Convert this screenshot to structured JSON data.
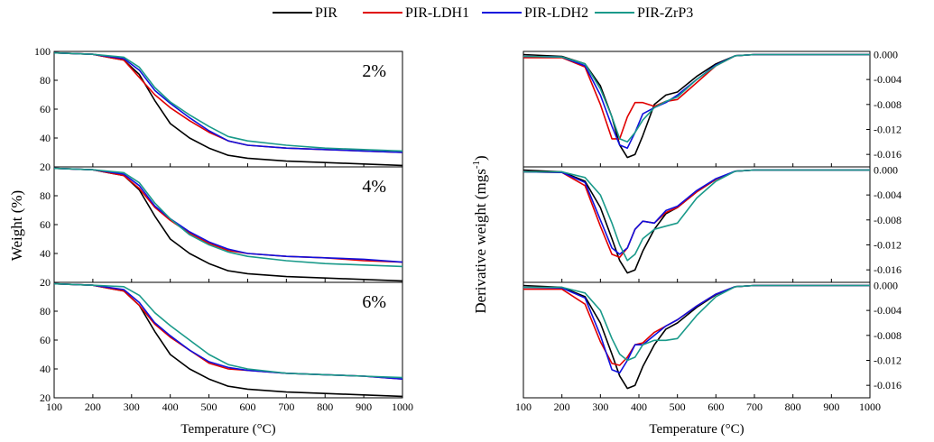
{
  "legend": {
    "items": [
      {
        "name": "PIR",
        "color": "#000000"
      },
      {
        "name": "PIR-LDH1",
        "color": "#e00000"
      },
      {
        "name": "PIR-LDH2",
        "color": "#1010dd"
      },
      {
        "name": "PIR-ZrP3",
        "color": "#1a9a8a"
      }
    ]
  },
  "left_ylabel": "Weight (%)",
  "right_ylabel_main": "Derivative weight (mgs",
  "right_ylabel_sup": "-1",
  "right_ylabel_end": ")",
  "chart_data": [
    {
      "type": "line",
      "panel": "left",
      "xlabel": "Temperature (°C)",
      "ylabel": "Weight (%)",
      "xlim": [
        100,
        1000
      ],
      "xticks": [
        100,
        200,
        300,
        400,
        500,
        600,
        700,
        800,
        900,
        1000
      ],
      "ylim": [
        20,
        100
      ],
      "yticks": [
        20,
        40,
        60,
        80,
        100
      ],
      "subplots": [
        {
          "label": "2%",
          "x": [
            100,
            200,
            280,
            320,
            360,
            400,
            450,
            500,
            550,
            600,
            700,
            800,
            900,
            1000
          ],
          "series": [
            {
              "name": "PIR",
              "values": [
                99,
                98,
                94,
                84,
                66,
                50,
                40,
                33,
                28,
                26,
                24,
                23,
                22,
                21
              ]
            },
            {
              "name": "PIR-LDH1",
              "values": [
                99,
                98,
                94,
                82,
                70,
                61,
                52,
                44,
                38,
                35,
                33,
                32,
                31,
                30
              ]
            },
            {
              "name": "PIR-LDH2",
              "values": [
                99,
                98,
                95,
                87,
                73,
                64,
                54,
                45,
                38,
                35,
                33,
                32,
                31,
                30
              ]
            },
            {
              "name": "PIR-ZrP3",
              "values": [
                99,
                98,
                96,
                89,
                75,
                65,
                56,
                48,
                41,
                38,
                35,
                33,
                32,
                31
              ]
            }
          ]
        },
        {
          "label": "4%",
          "x": [
            100,
            200,
            280,
            320,
            360,
            400,
            450,
            500,
            550,
            600,
            700,
            800,
            900,
            1000
          ],
          "series": [
            {
              "name": "PIR",
              "values": [
                99,
                98,
                94,
                84,
                66,
                50,
                40,
                33,
                28,
                26,
                24,
                23,
                22,
                21
              ]
            },
            {
              "name": "PIR-LDH1",
              "values": [
                99,
                98,
                94,
                85,
                72,
                63,
                54,
                47,
                42,
                40,
                38,
                37,
                35,
                34
              ]
            },
            {
              "name": "PIR-LDH2",
              "values": [
                99,
                98,
                95,
                87,
                73,
                64,
                55,
                48,
                43,
                40,
                38,
                37,
                36,
                34
              ]
            },
            {
              "name": "PIR-ZrP3",
              "values": [
                99,
                98,
                96,
                89,
                75,
                64,
                53,
                46,
                41,
                38,
                35,
                33,
                32,
                31
              ]
            }
          ]
        },
        {
          "label": "6%",
          "x": [
            100,
            200,
            280,
            320,
            360,
            400,
            450,
            500,
            550,
            600,
            700,
            800,
            900,
            1000
          ],
          "series": [
            {
              "name": "PIR",
              "values": [
                99,
                98,
                94,
                84,
                66,
                50,
                40,
                33,
                28,
                26,
                24,
                23,
                22,
                21
              ]
            },
            {
              "name": "PIR-LDH1",
              "values": [
                99,
                98,
                94,
                84,
                71,
                62,
                53,
                44,
                40,
                39,
                37,
                36,
                35,
                33
              ]
            },
            {
              "name": "PIR-LDH2",
              "values": [
                99,
                98,
                95,
                86,
                72,
                63,
                53,
                45,
                41,
                39,
                37,
                36,
                35,
                33
              ]
            },
            {
              "name": "PIR-ZrP3",
              "values": [
                99,
                98,
                97,
                91,
                79,
                70,
                60,
                50,
                43,
                40,
                37,
                36,
                35,
                34
              ]
            }
          ]
        }
      ]
    },
    {
      "type": "line",
      "panel": "right",
      "xlabel": "Temperature (°C)",
      "ylabel": "Derivative weight (mgs-1)",
      "xlim": [
        100,
        1000
      ],
      "xticks": [
        100,
        200,
        300,
        400,
        500,
        600,
        700,
        800,
        900,
        1000
      ],
      "ylim": [
        -0.018,
        0.0005
      ],
      "yticks": [
        "0.000",
        "-0.004",
        "-0.008",
        "-0.012",
        "-0.016"
      ],
      "subplots": [
        {
          "x": [
            100,
            200,
            260,
            300,
            330,
            350,
            370,
            390,
            410,
            440,
            470,
            500,
            550,
            600,
            650,
            700,
            800,
            900,
            1000
          ],
          "series": [
            {
              "name": "PIR",
              "values": [
                0,
                -0.0003,
                -0.0015,
                -0.005,
                -0.01,
                -0.0145,
                -0.0165,
                -0.016,
                -0.013,
                -0.008,
                -0.0065,
                -0.006,
                -0.0035,
                -0.0015,
                -0.0002,
                0,
                0,
                0,
                0
              ]
            },
            {
              "name": "PIR-LDH1",
              "values": [
                -0.0005,
                -0.0005,
                -0.002,
                -0.008,
                -0.0135,
                -0.0135,
                -0.01,
                -0.0077,
                -0.0077,
                -0.0083,
                -0.0075,
                -0.0072,
                -0.0045,
                -0.0018,
                -0.0002,
                0,
                0,
                0,
                0
              ]
            },
            {
              "name": "PIR-LDH2",
              "values": [
                -0.0003,
                -0.0004,
                -0.0018,
                -0.0065,
                -0.0115,
                -0.0145,
                -0.015,
                -0.0125,
                -0.0095,
                -0.0085,
                -0.0077,
                -0.0065,
                -0.004,
                -0.0017,
                -0.0002,
                0,
                0,
                0,
                0
              ]
            },
            {
              "name": "PIR-ZrP3",
              "values": [
                -0.0003,
                -0.0004,
                -0.0015,
                -0.0055,
                -0.01,
                -0.0135,
                -0.014,
                -0.0125,
                -0.0105,
                -0.0085,
                -0.0075,
                -0.0068,
                -0.004,
                -0.0018,
                -0.0002,
                0,
                0,
                0,
                0
              ]
            }
          ]
        },
        {
          "x": [
            100,
            200,
            260,
            300,
            330,
            350,
            370,
            390,
            410,
            440,
            470,
            500,
            550,
            600,
            650,
            700,
            800,
            900,
            1000
          ],
          "series": [
            {
              "name": "PIR",
              "values": [
                0,
                -0.0003,
                -0.0018,
                -0.006,
                -0.011,
                -0.0145,
                -0.0165,
                -0.016,
                -0.013,
                -0.0095,
                -0.007,
                -0.006,
                -0.0035,
                -0.0015,
                -0.0002,
                0,
                0,
                0,
                0
              ]
            },
            {
              "name": "PIR-LDH1",
              "values": [
                -0.0003,
                -0.0004,
                -0.0025,
                -0.009,
                -0.0135,
                -0.014,
                -0.0125,
                -0.0095,
                -0.0082,
                -0.0085,
                -0.0068,
                -0.006,
                -0.0035,
                -0.0015,
                -0.0002,
                0,
                0,
                0,
                0
              ]
            },
            {
              "name": "PIR-LDH2",
              "values": [
                -0.0003,
                -0.0004,
                -0.002,
                -0.008,
                -0.0125,
                -0.0135,
                -0.0125,
                -0.0095,
                -0.0082,
                -0.0085,
                -0.0065,
                -0.0058,
                -0.0033,
                -0.0014,
                -0.0002,
                0,
                0,
                0,
                0
              ]
            },
            {
              "name": "PIR-ZrP3",
              "values": [
                -0.0003,
                -0.0003,
                -0.0012,
                -0.004,
                -0.0085,
                -0.012,
                -0.0145,
                -0.0135,
                -0.011,
                -0.0095,
                -0.009,
                -0.0085,
                -0.0045,
                -0.0018,
                -0.0002,
                0,
                0,
                0,
                0
              ]
            }
          ]
        },
        {
          "x": [
            100,
            200,
            260,
            300,
            330,
            350,
            370,
            390,
            410,
            440,
            470,
            500,
            550,
            600,
            650,
            700,
            800,
            900,
            1000
          ],
          "series": [
            {
              "name": "PIR",
              "values": [
                0,
                -0.0003,
                -0.0018,
                -0.006,
                -0.011,
                -0.0145,
                -0.0165,
                -0.016,
                -0.013,
                -0.0095,
                -0.007,
                -0.006,
                -0.0035,
                -0.0015,
                -0.0002,
                0,
                0,
                0,
                0
              ]
            },
            {
              "name": "PIR-LDH1",
              "values": [
                -0.0006,
                -0.0006,
                -0.003,
                -0.009,
                -0.0125,
                -0.0128,
                -0.0115,
                -0.0095,
                -0.0092,
                -0.0075,
                -0.0065,
                -0.0055,
                -0.0033,
                -0.0014,
                -0.0002,
                0,
                0,
                0,
                0
              ]
            },
            {
              "name": "PIR-LDH2",
              "values": [
                -0.0003,
                -0.0004,
                -0.002,
                -0.008,
                -0.0135,
                -0.014,
                -0.012,
                -0.0095,
                -0.0095,
                -0.008,
                -0.0065,
                -0.0055,
                -0.0033,
                -0.0014,
                -0.0002,
                0,
                0,
                0,
                0
              ]
            },
            {
              "name": "PIR-ZrP3",
              "values": [
                -0.0003,
                -0.0003,
                -0.0012,
                -0.004,
                -0.0085,
                -0.011,
                -0.012,
                -0.0115,
                -0.0095,
                -0.0088,
                -0.0088,
                -0.0085,
                -0.0048,
                -0.0018,
                -0.0002,
                0,
                0,
                0,
                0
              ]
            }
          ]
        }
      ]
    }
  ]
}
